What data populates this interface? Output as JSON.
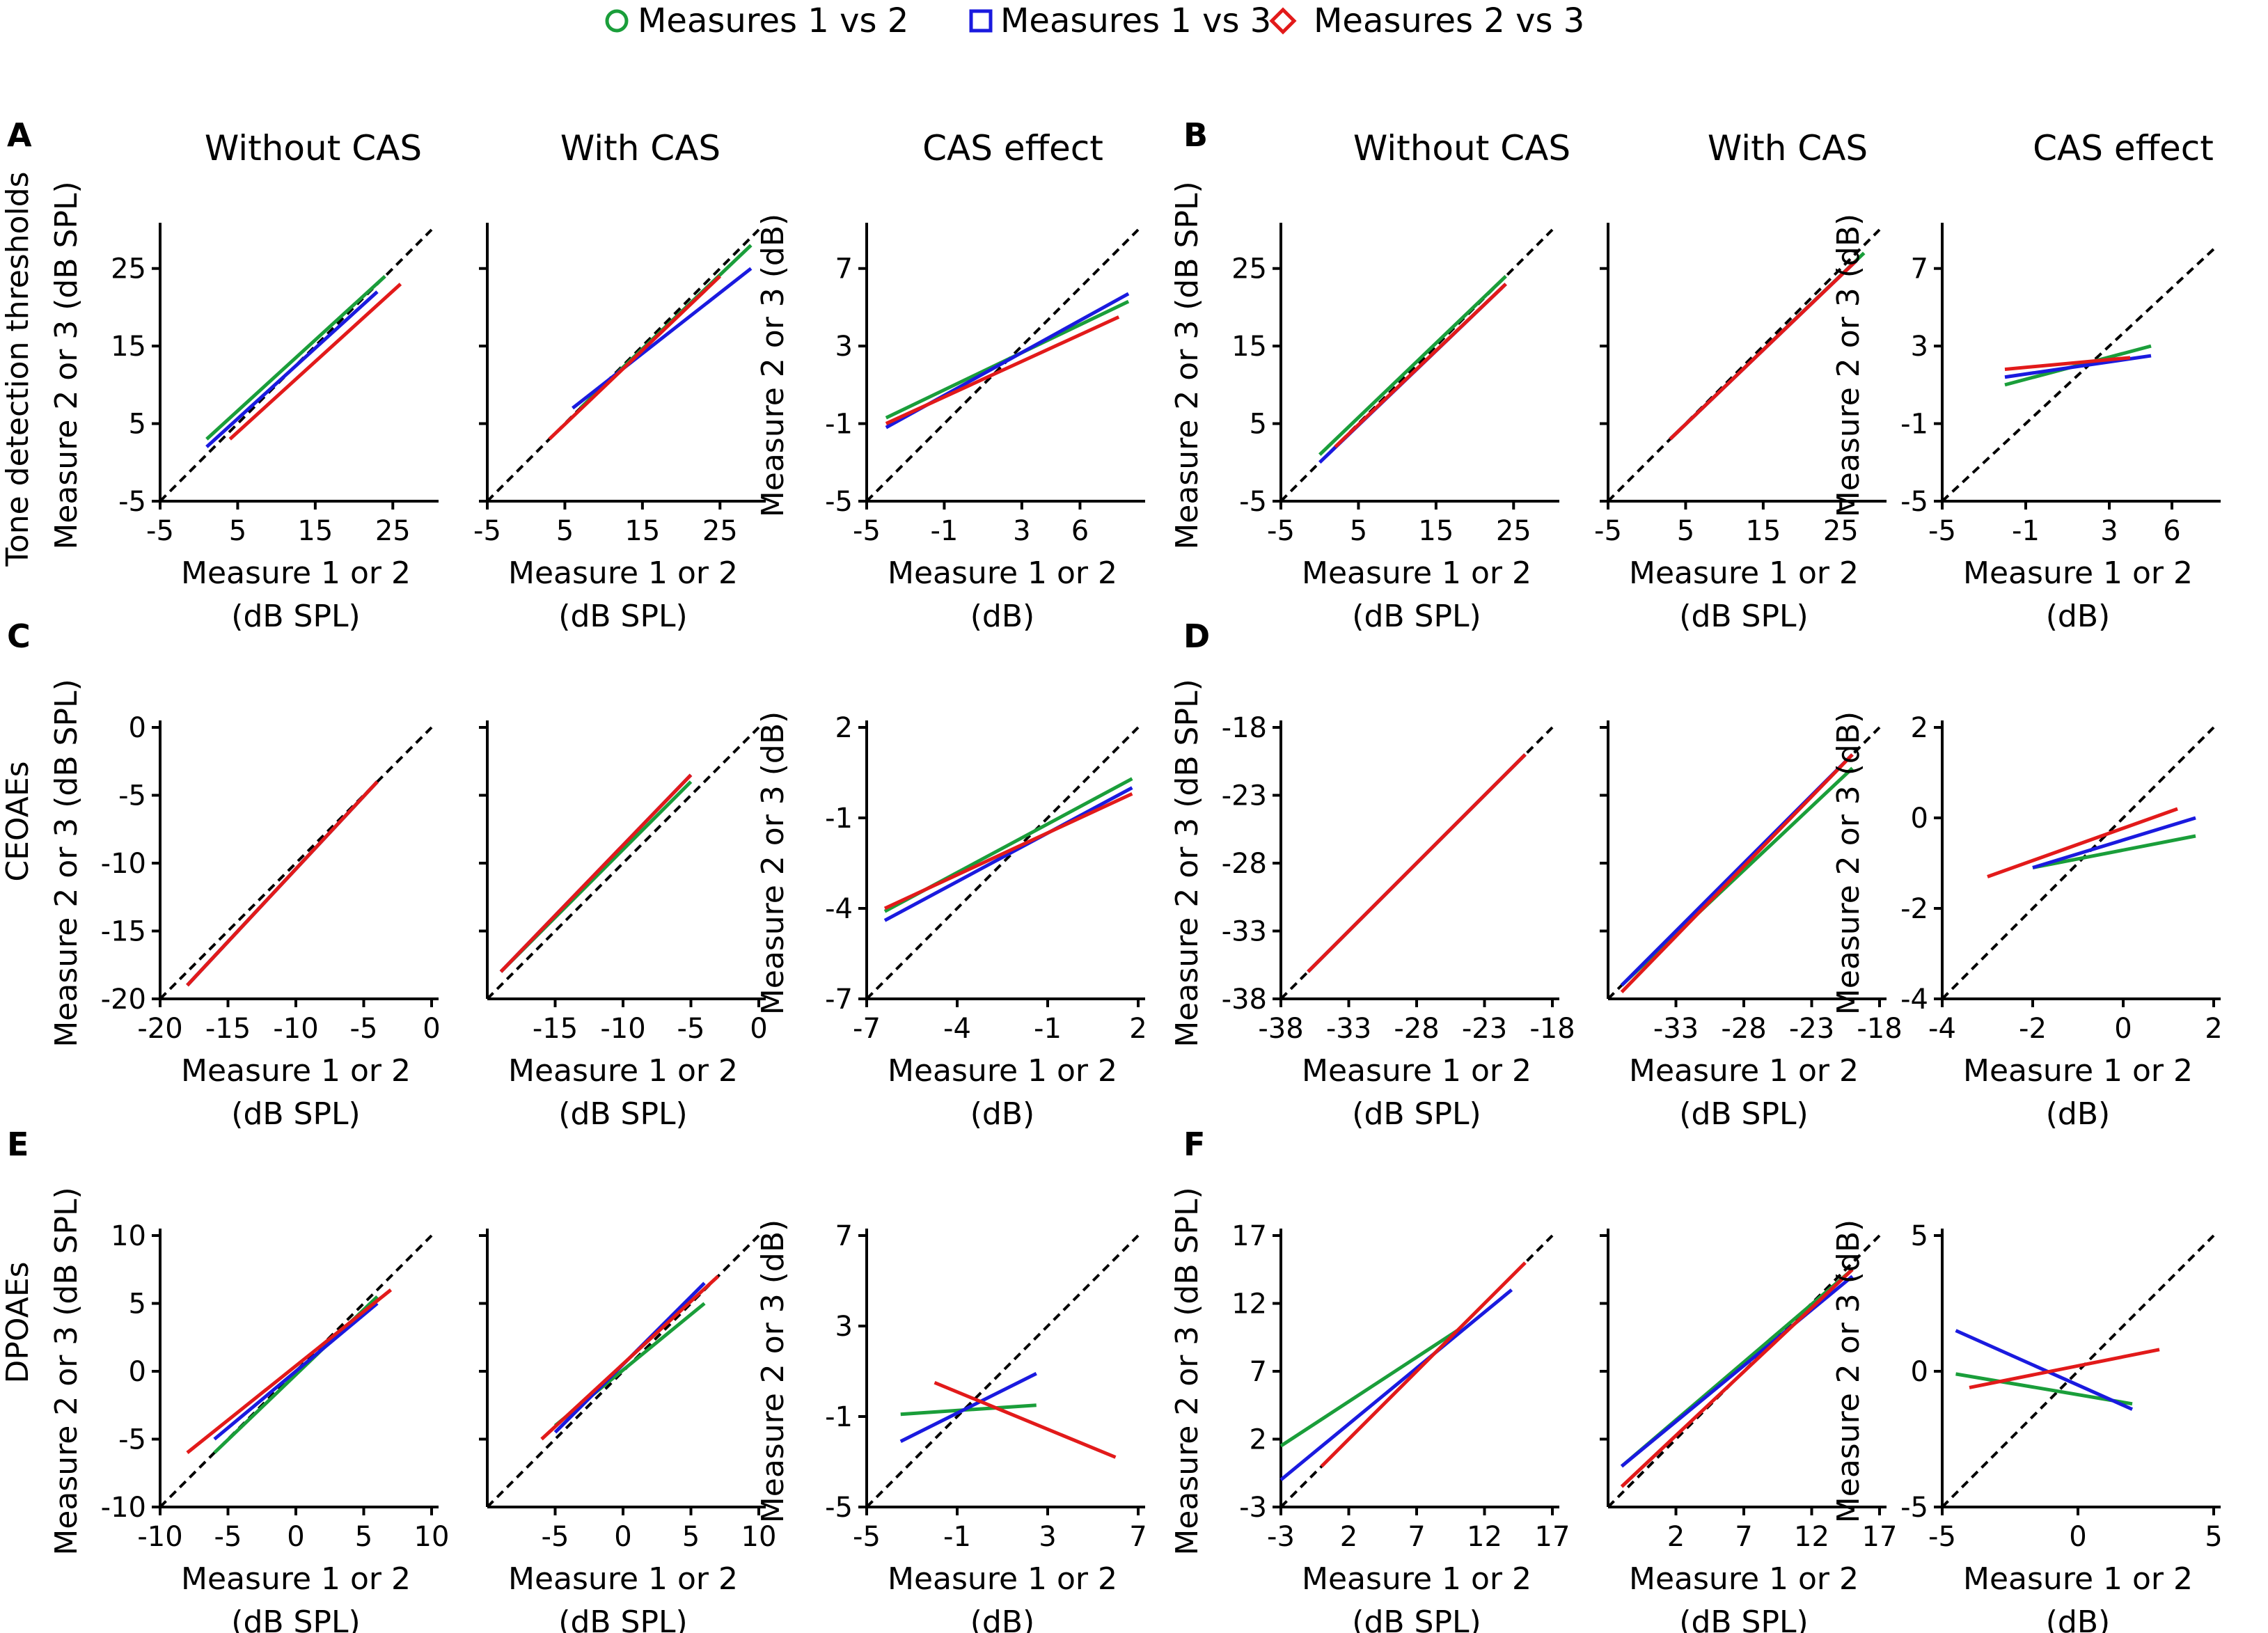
{
  "legend": [
    {
      "label": "Measures 1 vs 2",
      "color": "#1a9e3a",
      "marker": "circle"
    },
    {
      "label": "Measures 1 vs 3",
      "color": "#1a1adf",
      "marker": "square"
    },
    {
      "label": "Measures 2 vs 3",
      "color": "#e21a1a",
      "marker": "diamond"
    }
  ],
  "column_titles": [
    "Without CAS",
    "With CAS",
    "CAS effect",
    "Without CAS",
    "With CAS",
    "CAS effect"
  ],
  "panel_labels": [
    "A",
    "B",
    "C",
    "D",
    "E",
    "F"
  ],
  "row_labels": [
    "Tone detection thresholds",
    "CEOAEs",
    "DPOAEs"
  ],
  "ylabel_spl": "Measure 2 or 3 (dB SPL)",
  "ylabel_db": "Measure 2 or 3 (dB)",
  "xlabel_line1": "Measure 1 or 2",
  "xlabel_unit_spl": "(dB SPL)",
  "xlabel_unit_db": "(dB)",
  "chart_data": [
    {
      "id": "A1",
      "row": 0,
      "col": 0,
      "type": "scatter",
      "unit": "spl",
      "title": "Without CAS",
      "xlim": [
        -5,
        30
      ],
      "ylim": [
        -5,
        30
      ],
      "xticks": [
        "-5",
        "5",
        "15",
        "25"
      ],
      "yticks": [
        "-5",
        "5",
        "15",
        "25"
      ],
      "series": [
        {
          "name": "Measures 1 vs 2",
          "fit": [
            [
              1,
              3
            ],
            [
              24,
              24
            ]
          ]
        },
        {
          "name": "Measures 1 vs 3",
          "fit": [
            [
              1,
              2
            ],
            [
              23,
              22
            ]
          ]
        },
        {
          "name": "Measures 2 vs 3",
          "fit": [
            [
              4,
              3
            ],
            [
              26,
              23
            ]
          ]
        }
      ]
    },
    {
      "id": "A2",
      "row": 0,
      "col": 1,
      "type": "scatter",
      "unit": "spl",
      "title": "With CAS",
      "xlim": [
        -5,
        30
      ],
      "ylim": [
        -5,
        30
      ],
      "xticks": [
        "-5",
        "5",
        "15",
        "25"
      ],
      "yticks": [],
      "series": [
        {
          "name": "Measures 1 vs 2",
          "fit": [
            [
              7,
              7
            ],
            [
              29,
              28
            ]
          ]
        },
        {
          "name": "Measures 1 vs 3",
          "fit": [
            [
              6,
              7
            ],
            [
              29,
              25
            ]
          ]
        },
        {
          "name": "Measures 2 vs 3",
          "fit": [
            [
              3,
              3
            ],
            [
              25,
              24
            ]
          ]
        }
      ]
    },
    {
      "id": "A3",
      "row": 0,
      "col": 2,
      "type": "scatter",
      "unit": "db",
      "title": "CAS effect",
      "xlim": [
        -5,
        9
      ],
      "ylim": [
        -5,
        9
      ],
      "xticks": [
        "-5",
        "-1",
        "3",
        "6"
      ],
      "ytickvals": [
        -5,
        -1,
        3,
        7
      ],
      "yticks": [
        "-5",
        "-1",
        "3",
        "7"
      ],
      "series": [
        {
          "name": "Measures 1 vs 2",
          "fit": [
            [
              -4,
              -0.7
            ],
            [
              8.5,
              5.3
            ]
          ]
        },
        {
          "name": "Measures 1 vs 3",
          "fit": [
            [
              -4,
              -1.2
            ],
            [
              8.5,
              5.7
            ]
          ]
        },
        {
          "name": "Measures 2 vs 3",
          "fit": [
            [
              -4,
              -1.0
            ],
            [
              8,
              4.5
            ]
          ]
        }
      ]
    },
    {
      "id": "B1",
      "row": 0,
      "col": 3,
      "type": "scatter",
      "unit": "spl",
      "title": "Without CAS",
      "xlim": [
        -5,
        30
      ],
      "ylim": [
        -5,
        30
      ],
      "xticks": [
        "-5",
        "5",
        "15",
        "25"
      ],
      "yticks": [
        "-5",
        "5",
        "15",
        "25"
      ],
      "series": [
        {
          "name": "Measures 1 vs 2",
          "fit": [
            [
              0,
              1
            ],
            [
              24,
              24
            ]
          ]
        },
        {
          "name": "Measures 1 vs 3",
          "fit": [
            [
              0,
              0
            ],
            [
              24,
              23
            ]
          ]
        },
        {
          "name": "Measures 2 vs 3",
          "fit": [
            [
              2,
              2
            ],
            [
              24,
              23
            ]
          ]
        }
      ]
    },
    {
      "id": "B2",
      "row": 0,
      "col": 4,
      "type": "scatter",
      "unit": "spl",
      "title": "With CAS",
      "xlim": [
        -5,
        30
      ],
      "ylim": [
        -5,
        30
      ],
      "xticks": [
        "-5",
        "5",
        "15",
        "25"
      ],
      "yticks": [],
      "series": [
        {
          "name": "Measures 1 vs 2",
          "fit": [
            [
              3,
              3
            ],
            [
              28,
              27
            ]
          ]
        },
        {
          "name": "Measures 1 vs 3",
          "fit": [
            [
              3,
              3
            ],
            [
              27,
              26
            ]
          ]
        },
        {
          "name": "Measures 2 vs 3",
          "fit": [
            [
              3,
              3
            ],
            [
              27,
              26
            ]
          ]
        }
      ]
    },
    {
      "id": "B3",
      "row": 0,
      "col": 5,
      "type": "scatter",
      "unit": "db",
      "title": "CAS effect",
      "xlim": [
        -5,
        8
      ],
      "ylim": [
        -5,
        9
      ],
      "xticks": [
        "-5",
        "-1",
        "3",
        "6"
      ],
      "ytickvals": [
        -5,
        -1,
        3,
        7
      ],
      "yticks": [
        "-5",
        "-1",
        "3",
        "7"
      ],
      "series": [
        {
          "name": "Measures 1 vs 2",
          "fit": [
            [
              -2,
              1.0
            ],
            [
              5,
              3.0
            ]
          ]
        },
        {
          "name": "Measures 1 vs 3",
          "fit": [
            [
              -2,
              1.4
            ],
            [
              5,
              2.5
            ]
          ]
        },
        {
          "name": "Measures 2 vs 3",
          "fit": [
            [
              -2,
              1.8
            ],
            [
              4,
              2.4
            ]
          ]
        }
      ]
    },
    {
      "id": "C1",
      "row": 1,
      "col": 0,
      "type": "scatter",
      "unit": "spl",
      "title": "",
      "xlim": [
        -20,
        0
      ],
      "ylim": [
        -20,
        0
      ],
      "xticks": [
        "-20",
        "-15",
        "-10",
        "-5",
        "0"
      ],
      "yticks": [
        "-20",
        "-15",
        "-10",
        "-5",
        "0"
      ],
      "series": [
        {
          "name": "Measures 1 vs 2",
          "fit": [
            [
              -18,
              -19
            ],
            [
              -4,
              -4
            ]
          ]
        },
        {
          "name": "Measures 1 vs 3",
          "fit": [
            [
              -18,
              -19
            ],
            [
              -4,
              -4
            ]
          ]
        },
        {
          "name": "Measures 2 vs 3",
          "fit": [
            [
              -18,
              -19
            ],
            [
              -4,
              -4
            ]
          ]
        }
      ]
    },
    {
      "id": "C2",
      "row": 1,
      "col": 1,
      "type": "scatter",
      "unit": "spl",
      "title": "",
      "xlim": [
        -20,
        0
      ],
      "ylim": [
        -20,
        0
      ],
      "xticks": [
        "-15",
        "-10",
        "-5",
        "0"
      ],
      "yticks": [],
      "series": [
        {
          "name": "Measures 1 vs 2",
          "fit": [
            [
              -19,
              -18
            ],
            [
              -5,
              -4
            ]
          ]
        },
        {
          "name": "Measures 1 vs 3",
          "fit": [
            [
              -19,
              -18
            ],
            [
              -5,
              -3.5
            ]
          ]
        },
        {
          "name": "Measures 2 vs 3",
          "fit": [
            [
              -19,
              -18
            ],
            [
              -5,
              -3.5
            ]
          ]
        }
      ]
    },
    {
      "id": "C3",
      "row": 1,
      "col": 2,
      "type": "scatter",
      "unit": "db",
      "title": "",
      "xlim": [
        -7,
        2
      ],
      "ylim": [
        -7,
        2
      ],
      "xticks": [
        "-7",
        "-4",
        "-1",
        "2"
      ],
      "yticks": [
        "-7",
        "-4",
        "-1",
        "2"
      ],
      "series": [
        {
          "name": "Measures 1 vs 2",
          "fit": [
            [
              -6.4,
              -4.1
            ],
            [
              1.8,
              0.3
            ]
          ]
        },
        {
          "name": "Measures 1 vs 3",
          "fit": [
            [
              -6.4,
              -4.4
            ],
            [
              1.8,
              0.0
            ]
          ]
        },
        {
          "name": "Measures 2 vs 3",
          "fit": [
            [
              -6.4,
              -4.0
            ],
            [
              1.8,
              -0.2
            ]
          ]
        }
      ]
    },
    {
      "id": "D1",
      "row": 1,
      "col": 3,
      "type": "scatter",
      "unit": "spl",
      "title": "",
      "xlim": [
        -38,
        -18
      ],
      "ylim": [
        -38,
        -18
      ],
      "xticks": [
        "-38",
        "-33",
        "-28",
        "-23",
        "-18"
      ],
      "yticks": [
        "-38",
        "-33",
        "-28",
        "-23",
        "-18"
      ],
      "series": [
        {
          "name": "Measures 1 vs 2",
          "fit": [
            [
              -36,
              -36
            ],
            [
              -20,
              -20
            ]
          ]
        },
        {
          "name": "Measures 1 vs 3",
          "fit": [
            [
              -36,
              -36
            ],
            [
              -20,
              -20
            ]
          ]
        },
        {
          "name": "Measures 2 vs 3",
          "fit": [
            [
              -36,
              -36
            ],
            [
              -20,
              -20
            ]
          ]
        }
      ]
    },
    {
      "id": "D2",
      "row": 1,
      "col": 4,
      "type": "scatter",
      "unit": "spl",
      "title": "",
      "xlim": [
        -38,
        -18
      ],
      "ylim": [
        -38,
        -18
      ],
      "xticks": [
        "-33",
        "-28",
        "-23",
        "-18"
      ],
      "yticks": [],
      "series": [
        {
          "name": "Measures 1 vs 2",
          "fit": [
            [
              -37,
              -37
            ],
            [
              -20,
              -21
            ]
          ]
        },
        {
          "name": "Measures 1 vs 3",
          "fit": [
            [
              -37,
              -37
            ],
            [
              -20,
              -20
            ]
          ]
        },
        {
          "name": "Measures 2 vs 3",
          "fit": [
            [
              -37,
              -37.5
            ],
            [
              -20,
              -20
            ]
          ]
        }
      ]
    },
    {
      "id": "D3",
      "row": 1,
      "col": 4.9,
      "type": "scatter",
      "unit": "db",
      "title": "",
      "xlim": [
        -4,
        2
      ],
      "ylim": [
        -4,
        2
      ],
      "xticks": [
        "-4",
        "-2",
        "0",
        "2"
      ],
      "yticks": [
        "-4",
        "-2",
        "0",
        "2"
      ],
      "series": [
        {
          "name": "Measures 1 vs 2",
          "fit": [
            [
              -2,
              -1.1
            ],
            [
              1.6,
              -0.4
            ]
          ]
        },
        {
          "name": "Measures 1 vs 3",
          "fit": [
            [
              -2,
              -1.1
            ],
            [
              1.6,
              0.0
            ]
          ]
        },
        {
          "name": "Measures 2 vs 3",
          "fit": [
            [
              -3,
              -1.3
            ],
            [
              1.2,
              0.2
            ]
          ]
        }
      ]
    },
    {
      "id": "E1",
      "row": 2,
      "col": 0,
      "type": "scatter",
      "unit": "spl",
      "title": "",
      "xlim": [
        -10,
        10
      ],
      "ylim": [
        -10,
        10
      ],
      "xticks": [
        "-10",
        "-5",
        "0",
        "5",
        "10"
      ],
      "yticks": [
        "-10",
        "-5",
        "0",
        "5",
        "10"
      ],
      "series": [
        {
          "name": "Measures 1 vs 2",
          "fit": [
            [
              -6,
              -6
            ],
            [
              6,
              5.5
            ]
          ]
        },
        {
          "name": "Measures 1 vs 3",
          "fit": [
            [
              -6,
              -5
            ],
            [
              6,
              5
            ]
          ]
        },
        {
          "name": "Measures 2 vs 3",
          "fit": [
            [
              -8,
              -6
            ],
            [
              7,
              6
            ]
          ]
        }
      ]
    },
    {
      "id": "E2",
      "row": 2,
      "col": 1,
      "type": "scatter",
      "unit": "spl",
      "title": "",
      "xlim": [
        -10,
        10
      ],
      "ylim": [
        -10,
        10
      ],
      "xticks": [
        "-5",
        "0",
        "5",
        "10"
      ],
      "yticks": [],
      "series": [
        {
          "name": "Measures 1 vs 2",
          "fit": [
            [
              -5,
              -4
            ],
            [
              6,
              5
            ]
          ]
        },
        {
          "name": "Measures 1 vs 3",
          "fit": [
            [
              -5,
              -4.5
            ],
            [
              6,
              6.5
            ]
          ]
        },
        {
          "name": "Measures 2 vs 3",
          "fit": [
            [
              -6,
              -5
            ],
            [
              7,
              7
            ]
          ]
        }
      ]
    },
    {
      "id": "E3",
      "row": 2,
      "col": 2,
      "type": "scatter",
      "unit": "db",
      "title": "",
      "xlim": [
        -5,
        7
      ],
      "ylim": [
        -5,
        7
      ],
      "xticks": [
        "-5",
        "-1",
        "3",
        "7"
      ],
      "yticks": [
        "-5",
        "-1",
        "3",
        "7"
      ],
      "series": [
        {
          "name": "Measures 1 vs 2",
          "fit": [
            [
              -3.5,
              -0.9
            ],
            [
              2.5,
              -0.5
            ]
          ]
        },
        {
          "name": "Measures 1 vs 3",
          "fit": [
            [
              -3.5,
              -2.1
            ],
            [
              2.5,
              0.9
            ]
          ]
        },
        {
          "name": "Measures 2 vs 3",
          "fit": [
            [
              -2,
              0.5
            ],
            [
              6,
              -2.8
            ]
          ]
        }
      ]
    },
    {
      "id": "F1",
      "row": 2,
      "col": 3,
      "type": "scatter",
      "unit": "spl",
      "title": "",
      "xlim": [
        -3,
        17
      ],
      "ylim": [
        -3,
        17
      ],
      "xticks": [
        "-3",
        "2",
        "7",
        "12",
        "17"
      ],
      "yticks": [
        "-3",
        "2",
        "7",
        "12",
        "17"
      ],
      "series": [
        {
          "name": "Measures 1 vs 2",
          "fit": [
            [
              -3,
              1.5
            ],
            [
              10,
              10
            ]
          ]
        },
        {
          "name": "Measures 1 vs 3",
          "fit": [
            [
              -3,
              -1
            ],
            [
              14,
              13
            ]
          ]
        },
        {
          "name": "Measures 2 vs 3",
          "fit": [
            [
              0,
              0
            ],
            [
              15,
              15
            ]
          ]
        }
      ]
    },
    {
      "id": "F2",
      "row": 2,
      "col": 4,
      "type": "scatter",
      "unit": "spl",
      "title": "",
      "xlim": [
        -3,
        17
      ],
      "ylim": [
        -3,
        17
      ],
      "xticks": [
        "2",
        "7",
        "12",
        "17"
      ],
      "yticks": [],
      "series": [
        {
          "name": "Measures 1 vs 2",
          "fit": [
            [
              -2,
              0
            ],
            [
              15,
              14.5
            ]
          ]
        },
        {
          "name": "Measures 1 vs 3",
          "fit": [
            [
              -2,
              0
            ],
            [
              15,
              14
            ]
          ]
        },
        {
          "name": "Measures 2 vs 3",
          "fit": [
            [
              -2,
              -1.5
            ],
            [
              15,
              14.5
            ]
          ]
        }
      ]
    },
    {
      "id": "F3",
      "row": 2,
      "col": 5,
      "type": "scatter",
      "unit": "db",
      "title": "",
      "xlim": [
        -5,
        5
      ],
      "ylim": [
        -5,
        5
      ],
      "xticks": [
        "-5",
        "0",
        "5"
      ],
      "yticks": [
        "-5",
        "0",
        "5"
      ],
      "series": [
        {
          "name": "Measures 1 vs 2",
          "fit": [
            [
              -4.5,
              -0.1
            ],
            [
              2,
              -1.2
            ]
          ]
        },
        {
          "name": "Measures 1 vs 3",
          "fit": [
            [
              -4.5,
              1.5
            ],
            [
              2,
              -1.4
            ]
          ]
        },
        {
          "name": "Measures 2 vs 3",
          "fit": [
            [
              -4,
              -0.6
            ],
            [
              3,
              0.8
            ]
          ]
        }
      ]
    }
  ]
}
